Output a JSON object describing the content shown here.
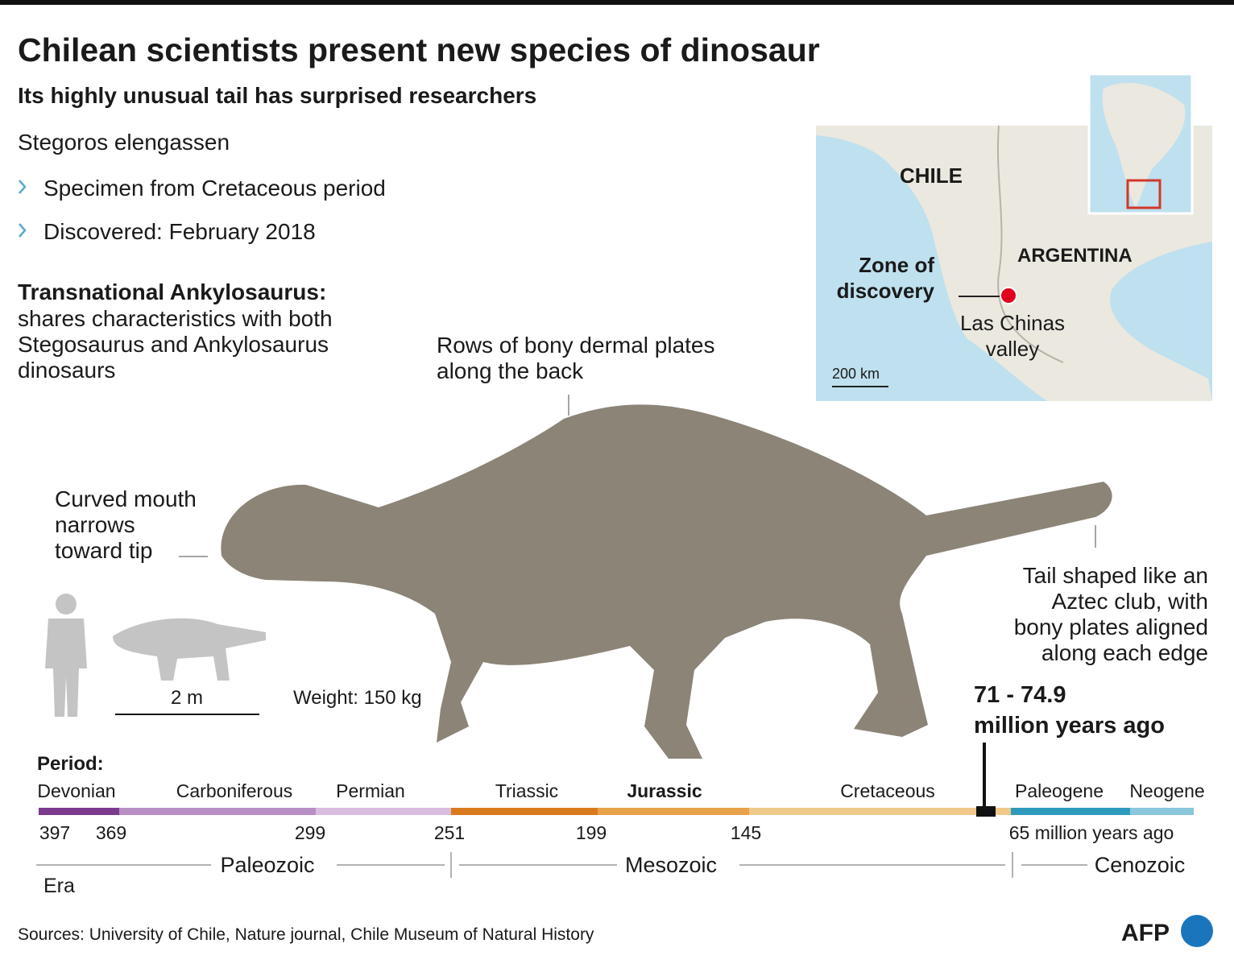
{
  "header": {
    "title": "Chilean scientists present new species of dinosaur",
    "subtitle": "Its highly unusual tail has surprised researchers"
  },
  "species": {
    "name": "Stegoros elengassen",
    "facts": [
      "Specimen from Cretaceous period",
      "Discovered: February 2018"
    ]
  },
  "description": {
    "heading": "Transnational Ankylosaurus:",
    "lines": [
      "shares characteristics with both",
      "Stegosaurus and Ankylosaurus",
      "dinosaurs"
    ]
  },
  "annotations": {
    "back": [
      "Rows of bony dermal plates",
      "along the back"
    ],
    "mouth": [
      "Curved mouth",
      "narrows",
      "toward tip"
    ],
    "tail": [
      "Tail shaped like an",
      "Aztec club, with",
      "bony plates aligned",
      "along each edge"
    ]
  },
  "scale": {
    "length": "2 m",
    "weight": "Weight: 150 kg"
  },
  "age": [
    "71 - 74.9",
    "million years ago"
  ],
  "map": {
    "country": "CHILE",
    "neighbor": "ARGENTINA",
    "zone": [
      "Zone of",
      "discovery"
    ],
    "site": [
      "Las Chinas",
      "valley"
    ],
    "scale": "200 km"
  },
  "timeline": {
    "period_label": "Period:",
    "era_label": "Era",
    "periods": [
      {
        "name": "Devonian",
        "color": "#7b3a8c"
      },
      {
        "name": "Carboniferous",
        "color": "#b88fc4"
      },
      {
        "name": "Permian",
        "color": "#d9bde0"
      },
      {
        "name": "Triassic",
        "color": "#d97a1e"
      },
      {
        "name": "Jurassic",
        "color": "#e8a24a"
      },
      {
        "name": "Cretaceous",
        "color": "#f0c98a"
      },
      {
        "name": "Paleogene",
        "color": "#2e9bbd"
      },
      {
        "name": "Neogene",
        "color": "#8ac6dc"
      }
    ],
    "ticks": [
      "397",
      "369",
      "299",
      "251",
      "199",
      "145",
      "65 million years ago"
    ],
    "eras": [
      "Paleozoic",
      "Mesozoic",
      "Cenozoic"
    ]
  },
  "sources": "Sources: University of Chile, Nature journal, Chile Museum of Natural History",
  "logo": "AFP"
}
